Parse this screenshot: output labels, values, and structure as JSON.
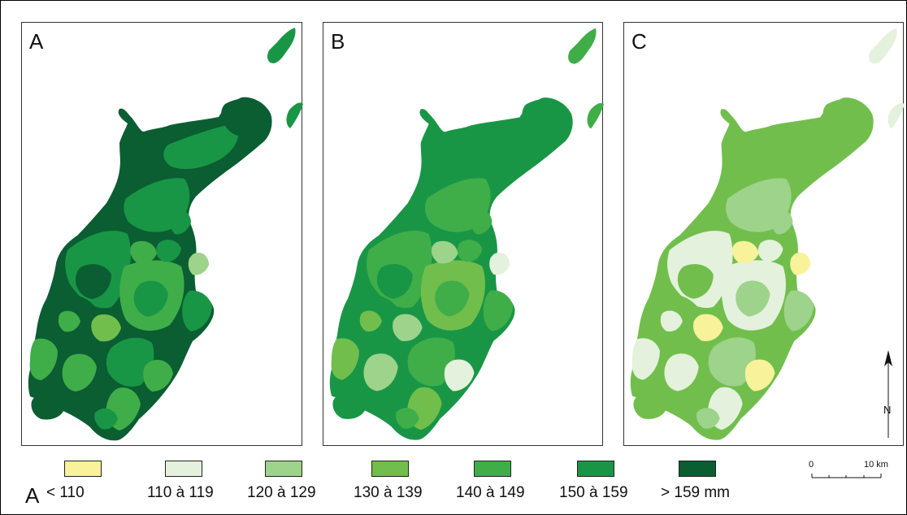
{
  "panels": [
    {
      "letter": "A",
      "classes": [
        6,
        5,
        6,
        5,
        5,
        4,
        6,
        5,
        4,
        4,
        5,
        4,
        6,
        6,
        5,
        4,
        5,
        3,
        4,
        2,
        5,
        4
      ]
    },
    {
      "letter": "B",
      "classes": [
        5,
        4,
        5,
        4,
        5,
        3,
        5,
        4,
        3,
        2,
        4,
        3,
        5,
        5,
        4,
        1,
        4,
        2,
        3,
        1,
        4,
        2
      ]
    },
    {
      "letter": "C",
      "classes": [
        3,
        1,
        3,
        2,
        3,
        1,
        3,
        2,
        1,
        1,
        2,
        1,
        3,
        3,
        2,
        0,
        2,
        0,
        1,
        0,
        2,
        0
      ]
    }
  ],
  "legend": {
    "letter": "A",
    "unit": "mm",
    "items": [
      {
        "label": "< 110",
        "color": "#f8f29a"
      },
      {
        "label": "110 à 119",
        "color": "#e4f1dc"
      },
      {
        "label": "120 à 129",
        "color": "#9dd38a"
      },
      {
        "label": "130 à 139",
        "color": "#71be4d"
      },
      {
        "label": "140 à 149",
        "color": "#3fae49"
      },
      {
        "label": "150 à 159",
        "color": "#199645"
      },
      {
        "label": "> 159 mm",
        "color": "#0a5e32"
      }
    ]
  },
  "scalebar": {
    "start": "0",
    "end": "10 km"
  },
  "north_label": "N"
}
